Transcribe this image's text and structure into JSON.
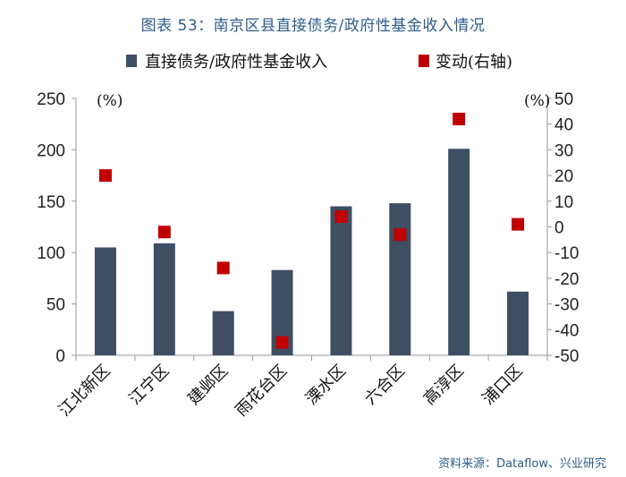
{
  "title": "图表 53：南京区县直接债务/政府性基金收入情况",
  "source": "资料来源：Dataflow、兴业研究",
  "colors": {
    "bar": "#3f4e63",
    "marker": "#c00000",
    "axis": "#999999",
    "title": "#2e5c8a"
  },
  "chart_data": {
    "type": "bar",
    "title": "图表 53：南京区县直接债务/政府性基金收入情况",
    "categories": [
      "江北新区",
      "江宁区",
      "建邺区",
      "雨花台区",
      "溧水区",
      "六合区",
      "高淳区",
      "浦口区"
    ],
    "series": [
      {
        "name": "直接债务/政府性基金收入",
        "type": "bar",
        "axis": "left",
        "values": [
          105,
          109,
          43,
          83,
          145,
          148,
          201,
          62
        ]
      },
      {
        "name": "变动(右轴)",
        "type": "scatter",
        "axis": "right",
        "values": [
          20,
          -2,
          -16,
          -45,
          4,
          -3,
          42,
          1
        ]
      }
    ],
    "y_left": {
      "min": 0,
      "max": 250,
      "ticks": [
        0,
        50,
        100,
        150,
        200,
        250
      ],
      "unit": "(%)"
    },
    "y_right": {
      "min": -50,
      "max": 50,
      "ticks": [
        -50,
        -40,
        -30,
        -20,
        -10,
        0,
        10,
        20,
        30,
        40,
        50
      ],
      "unit": "(%)"
    },
    "legend": [
      {
        "label": "直接债务/政府性基金收入",
        "kind": "bar"
      },
      {
        "label": "变动(右轴)",
        "kind": "marker"
      }
    ],
    "legend_position": "top"
  }
}
